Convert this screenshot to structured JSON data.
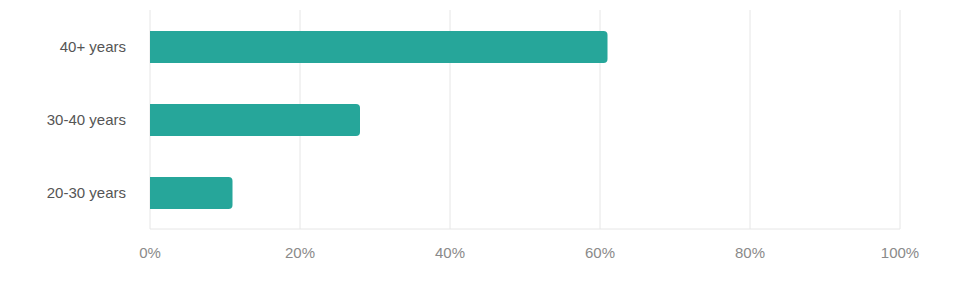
{
  "chart_data": {
    "type": "bar",
    "orientation": "horizontal",
    "categories": [
      "40+ years",
      "30-40 years",
      "20-30 years"
    ],
    "values": [
      61,
      28,
      11
    ],
    "color": "#26a69a",
    "xlim": [
      0,
      100
    ],
    "xticks": [
      {
        "value": 0,
        "label": "0%"
      },
      {
        "value": 20,
        "label": "20%"
      },
      {
        "value": 40,
        "label": "40%"
      },
      {
        "value": 60,
        "label": "60%"
      },
      {
        "value": 80,
        "label": "80%"
      },
      {
        "value": 100,
        "label": "100%"
      }
    ],
    "grid": true
  }
}
